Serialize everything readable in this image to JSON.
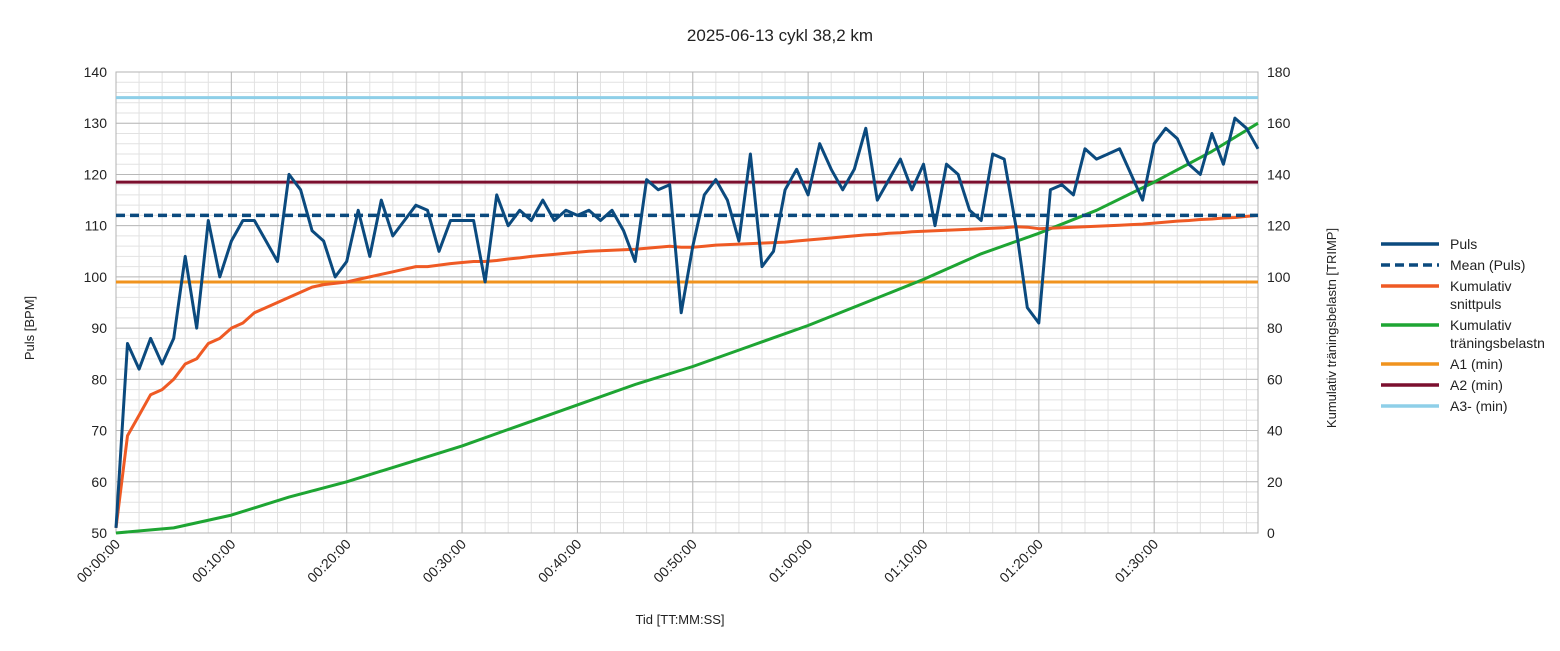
{
  "chart_data": {
    "type": "line",
    "title": "2025-06-13 cykl 38,2 km",
    "xlabel": "Tid [TT:MM:SS]",
    "ylabel": "Puls [BPM]",
    "y2label": "Kumulativ träningsbelastn [TRIMP]",
    "xlim": [
      0,
      99
    ],
    "ylim": [
      50,
      140
    ],
    "y2lim": [
      0,
      180
    ],
    "x_ticks": [
      0,
      10,
      20,
      30,
      40,
      50,
      60,
      70,
      80,
      90
    ],
    "x_tick_labels": [
      "00:00:00",
      "00:10:00",
      "00:20:00",
      "00:30:00",
      "00:40:00",
      "00:50:00",
      "01:00:00",
      "01:10:00",
      "01:20:00",
      "01:30:00"
    ],
    "y_ticks": [
      50,
      60,
      70,
      80,
      90,
      100,
      110,
      120,
      130,
      140
    ],
    "y2_ticks": [
      0,
      20,
      40,
      60,
      80,
      100,
      120,
      140,
      160,
      180
    ],
    "grid": true,
    "legend_position": "right",
    "colors": {
      "puls": "#0b4a7e",
      "mean": "#0b4a7e",
      "snittpuls": "#ef5a24",
      "trimp": "#1ea533",
      "a1": "#f0931e",
      "a2": "#7b0f2e",
      "a3": "#8ecfe8"
    },
    "series": [
      {
        "name": "Puls",
        "axis": "left",
        "x": [
          0,
          1,
          2,
          3,
          4,
          5,
          6,
          7,
          8,
          9,
          10,
          11,
          12,
          13,
          14,
          15,
          16,
          17,
          18,
          19,
          20,
          21,
          22,
          23,
          24,
          25,
          26,
          27,
          28,
          29,
          30,
          31,
          32,
          33,
          34,
          35,
          36,
          37,
          38,
          39,
          40,
          41,
          42,
          43,
          44,
          45,
          46,
          47,
          48,
          49,
          50,
          51,
          52,
          53,
          54,
          55,
          56,
          57,
          58,
          59,
          60,
          61,
          62,
          63,
          64,
          65,
          66,
          67,
          68,
          69,
          70,
          71,
          72,
          73,
          74,
          75,
          76,
          77,
          78,
          79,
          80,
          81,
          82,
          83,
          84,
          85,
          86,
          87,
          88,
          89,
          90,
          91,
          92,
          93,
          94,
          95,
          96,
          97,
          98,
          99
        ],
        "y": [
          51,
          87,
          82,
          88,
          83,
          88,
          104,
          90,
          111,
          100,
          107,
          111,
          111,
          107,
          103,
          120,
          117,
          109,
          107,
          100,
          103,
          113,
          104,
          115,
          108,
          111,
          114,
          113,
          105,
          111,
          111,
          111,
          99,
          116,
          110,
          113,
          111,
          115,
          111,
          113,
          112,
          113,
          111,
          113,
          109,
          103,
          119,
          117,
          118,
          93,
          106,
          116,
          119,
          115,
          107,
          124,
          102,
          105,
          117,
          121,
          116,
          126,
          121,
          117,
          121,
          129,
          115,
          119,
          123,
          117,
          122,
          110,
          122,
          120,
          113,
          111,
          124,
          123,
          110,
          94,
          91,
          117,
          118,
          116,
          125,
          123,
          124,
          125,
          120,
          115,
          126,
          129,
          127,
          122,
          120,
          128,
          122,
          131,
          129,
          125
        ]
      },
      {
        "name": "Mean (Puls)",
        "axis": "left",
        "dashed": true,
        "x": [
          0,
          99
        ],
        "y": [
          112,
          112
        ]
      },
      {
        "name": "Kumulativ snittpuls",
        "axis": "left",
        "x": [
          0,
          1,
          2,
          3,
          4,
          5,
          6,
          7,
          8,
          9,
          10,
          11,
          12,
          13,
          14,
          15,
          16,
          17,
          18,
          20,
          21,
          22,
          23,
          24,
          25,
          26,
          27,
          28,
          29,
          30,
          31,
          32,
          33,
          34,
          35,
          36,
          37,
          38,
          39,
          40,
          41,
          42,
          43,
          44,
          45,
          46,
          47,
          48,
          49,
          50,
          51,
          52,
          53,
          54,
          55,
          56,
          57,
          58,
          59,
          60,
          61,
          62,
          63,
          64,
          65,
          66,
          67,
          68,
          69,
          70,
          71,
          72,
          73,
          74,
          75,
          76,
          77,
          78,
          79,
          80,
          81,
          82,
          83,
          84,
          85,
          86,
          87,
          88,
          89,
          90,
          91,
          92,
          93,
          94,
          95,
          96,
          97,
          98,
          99
        ],
        "y": [
          51,
          69,
          73,
          77,
          78,
          80,
          83,
          84,
          87,
          88,
          90,
          91,
          93,
          94,
          95,
          96,
          97,
          98,
          98.5,
          99,
          99.5,
          100,
          100.5,
          101,
          101.5,
          102,
          102,
          102.3,
          102.6,
          102.8,
          103,
          103,
          103.2,
          103.5,
          103.7,
          104,
          104.2,
          104.4,
          104.6,
          104.8,
          105,
          105.1,
          105.2,
          105.3,
          105.4,
          105.6,
          105.8,
          106,
          105.8,
          105.8,
          106,
          106.2,
          106.3,
          106.4,
          106.5,
          106.6,
          106.7,
          106.8,
          107,
          107.2,
          107.4,
          107.6,
          107.8,
          108,
          108.2,
          108.3,
          108.5,
          108.6,
          108.8,
          108.9,
          109,
          109.1,
          109.2,
          109.3,
          109.4,
          109.5,
          109.6,
          109.8,
          109.7,
          109.4,
          109.5,
          109.6,
          109.7,
          109.8,
          109.9,
          110,
          110.1,
          110.2,
          110.3,
          110.5,
          110.7,
          110.9,
          111,
          111.2,
          111.3,
          111.5,
          111.6,
          111.8,
          112
        ]
      },
      {
        "name": "Kumulativ träningsbelastn",
        "axis": "right",
        "x": [
          0,
          5,
          10,
          15,
          20,
          25,
          30,
          35,
          40,
          45,
          50,
          55,
          60,
          65,
          70,
          75,
          80,
          85,
          90,
          95,
          99
        ],
        "y": [
          0,
          2,
          7,
          14,
          20,
          27,
          34,
          42,
          50,
          58,
          65,
          73,
          81,
          90,
          99,
          109,
          117,
          126,
          137,
          149,
          160
        ]
      },
      {
        "name": "A1 (min)",
        "axis": "left",
        "x": [
          0,
          99
        ],
        "y": [
          99,
          99
        ]
      },
      {
        "name": "A2 (min)",
        "axis": "left",
        "x": [
          0,
          99
        ],
        "y": [
          118.5,
          118.5
        ]
      },
      {
        "name": "A3- (min)",
        "axis": "left",
        "x": [
          0,
          99
        ],
        "y": [
          135,
          135
        ]
      }
    ],
    "legend": [
      {
        "label": "Puls",
        "color": "puls",
        "dashed": false
      },
      {
        "label": "Mean (Puls)",
        "color": "mean",
        "dashed": true
      },
      {
        "label": "Kumulativ",
        "label2": "snittpuls",
        "color": "snittpuls",
        "dashed": false
      },
      {
        "label": "Kumulativ",
        "label2": "träningsbelastn",
        "color": "trimp",
        "dashed": false
      },
      {
        "label": "A1 (min)",
        "color": "a1",
        "dashed": false
      },
      {
        "label": "A2 (min)",
        "color": "a2",
        "dashed": false
      },
      {
        "label": "A3- (min)",
        "color": "a3",
        "dashed": false
      }
    ]
  }
}
